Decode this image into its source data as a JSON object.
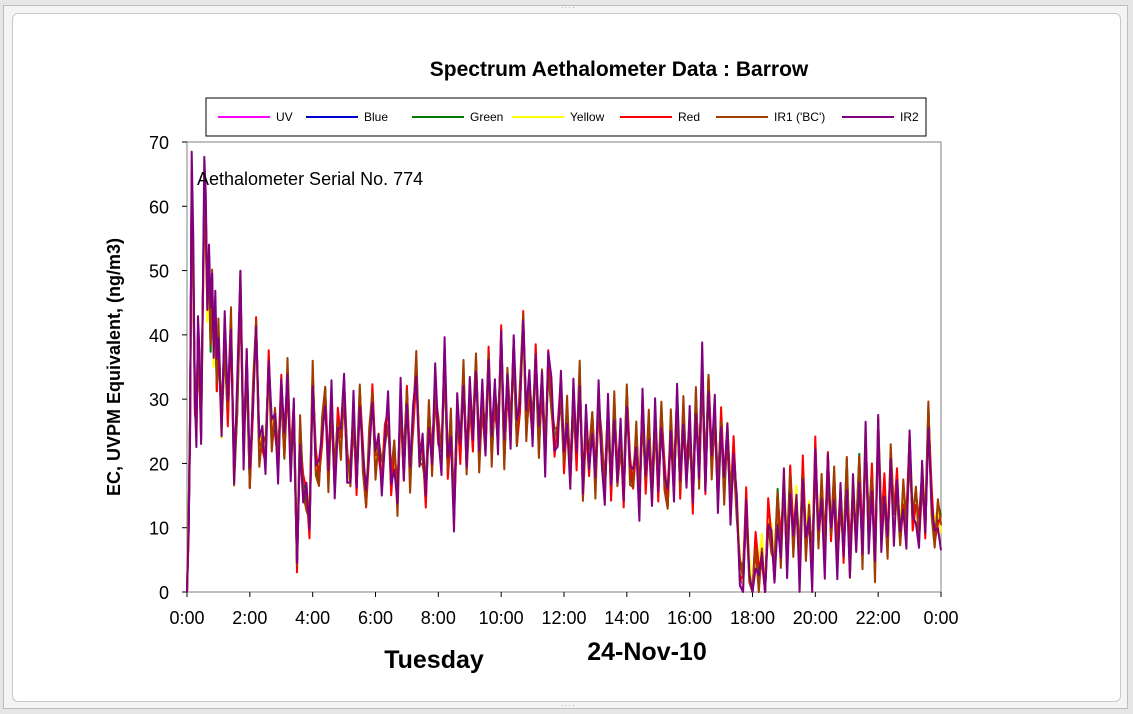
{
  "chart_data": {
    "type": "line",
    "title": "Spectrum Aethalometer Data  :  Barrow",
    "ylabel": "EC, UVPM Equivalent, (ng/m3)",
    "xlabel": "",
    "ylim": [
      0,
      70
    ],
    "yticks": [
      0,
      10,
      20,
      30,
      40,
      50,
      60,
      70
    ],
    "xticks": [
      "0:00",
      "2:00",
      "4:00",
      "6:00",
      "8:00",
      "10:00",
      "12:00",
      "14:00",
      "16:00",
      "18:00",
      "20:00",
      "22:00",
      "0:00"
    ],
    "xlim_hours": [
      0,
      24
    ],
    "annotation": "Aethalometer  Serial No. 774",
    "day_label": "Tuesday",
    "date_label": "24-Nov-10",
    "grid": false,
    "legend_position": "top",
    "series": [
      {
        "name": "UV",
        "color": "#ff00ff"
      },
      {
        "name": "Blue",
        "color": "#0000cc"
      },
      {
        "name": "Green",
        "color": "#007a00"
      },
      {
        "name": "Yellow",
        "color": "#ffff00"
      },
      {
        "name": "Red",
        "color": "#ff0000"
      },
      {
        "name": "IR1 ('BC')",
        "color": "#a03c00"
      },
      {
        "name": "IR2",
        "color": "#800080"
      }
    ],
    "base_values": [
      [
        0.0,
        0
      ],
      [
        0.05,
        10
      ],
      [
        0.1,
        27
      ],
      [
        0.15,
        65
      ],
      [
        0.2,
        50
      ],
      [
        0.25,
        30
      ],
      [
        0.3,
        25
      ],
      [
        0.35,
        40
      ],
      [
        0.4,
        34
      ],
      [
        0.45,
        25
      ],
      [
        0.5,
        44
      ],
      [
        0.55,
        62
      ],
      [
        0.6,
        58
      ],
      [
        0.65,
        45
      ],
      [
        0.7,
        52
      ],
      [
        0.75,
        40
      ],
      [
        0.8,
        48
      ],
      [
        0.85,
        38
      ],
      [
        0.9,
        44
      ],
      [
        0.95,
        33
      ],
      [
        1.0,
        40
      ],
      [
        1.1,
        26
      ],
      [
        1.2,
        40
      ],
      [
        1.3,
        28
      ],
      [
        1.4,
        42
      ],
      [
        1.5,
        18
      ],
      [
        1.6,
        30
      ],
      [
        1.7,
        48
      ],
      [
        1.8,
        22
      ],
      [
        1.9,
        36
      ],
      [
        2.0,
        17
      ],
      [
        2.1,
        30
      ],
      [
        2.2,
        42
      ],
      [
        2.3,
        22
      ],
      [
        2.4,
        24
      ],
      [
        2.5,
        21
      ],
      [
        2.6,
        36
      ],
      [
        2.7,
        24
      ],
      [
        2.8,
        27
      ],
      [
        2.9,
        20
      ],
      [
        3.0,
        32
      ],
      [
        3.1,
        22
      ],
      [
        3.2,
        34
      ],
      [
        3.3,
        20
      ],
      [
        3.4,
        28
      ],
      [
        3.5,
        4
      ],
      [
        3.6,
        25
      ],
      [
        3.7,
        16
      ],
      [
        3.8,
        15
      ],
      [
        3.9,
        10
      ],
      [
        4.0,
        34
      ],
      [
        4.1,
        20
      ],
      [
        4.2,
        18
      ],
      [
        4.3,
        25
      ],
      [
        4.4,
        31
      ],
      [
        4.5,
        18
      ],
      [
        4.6,
        30
      ],
      [
        4.7,
        17
      ],
      [
        4.8,
        27
      ],
      [
        4.9,
        23
      ],
      [
        5.0,
        32
      ],
      [
        5.1,
        20
      ],
      [
        5.2,
        18
      ],
      [
        5.3,
        28
      ],
      [
        5.4,
        17
      ],
      [
        5.5,
        31
      ],
      [
        5.6,
        21
      ],
      [
        5.7,
        14
      ],
      [
        5.8,
        23
      ],
      [
        5.9,
        31
      ],
      [
        6.0,
        20
      ],
      [
        6.1,
        23
      ],
      [
        6.2,
        18
      ],
      [
        6.3,
        24
      ],
      [
        6.4,
        28
      ],
      [
        6.5,
        17
      ],
      [
        6.6,
        22
      ],
      [
        6.7,
        14
      ],
      [
        6.8,
        30
      ],
      [
        6.9,
        19
      ],
      [
        7.0,
        31
      ],
      [
        7.1,
        18
      ],
      [
        7.2,
        27
      ],
      [
        7.3,
        35
      ],
      [
        7.4,
        21
      ],
      [
        7.5,
        22
      ],
      [
        7.6,
        15
      ],
      [
        7.7,
        28
      ],
      [
        7.8,
        20
      ],
      [
        7.9,
        32
      ],
      [
        8.0,
        25
      ],
      [
        8.1,
        21
      ],
      [
        8.2,
        37
      ],
      [
        8.3,
        19
      ],
      [
        8.4,
        26
      ],
      [
        8.5,
        12
      ],
      [
        8.6,
        28
      ],
      [
        8.7,
        22
      ],
      [
        8.8,
        34
      ],
      [
        8.9,
        20
      ],
      [
        9.0,
        30
      ],
      [
        9.1,
        24
      ],
      [
        9.2,
        36
      ],
      [
        9.3,
        21
      ],
      [
        9.4,
        30
      ],
      [
        9.5,
        23
      ],
      [
        9.6,
        37
      ],
      [
        9.7,
        22
      ],
      [
        9.8,
        31
      ],
      [
        9.9,
        24
      ],
      [
        10.0,
        40
      ],
      [
        10.1,
        21
      ],
      [
        10.2,
        33
      ],
      [
        10.3,
        25
      ],
      [
        10.4,
        38
      ],
      [
        10.5,
        24
      ],
      [
        10.6,
        30
      ],
      [
        10.7,
        43
      ],
      [
        10.8,
        26
      ],
      [
        10.9,
        32
      ],
      [
        11.0,
        25
      ],
      [
        11.1,
        37
      ],
      [
        11.2,
        23
      ],
      [
        11.3,
        33
      ],
      [
        11.4,
        21
      ],
      [
        11.5,
        36
      ],
      [
        11.6,
        30
      ],
      [
        11.7,
        23
      ],
      [
        11.8,
        25
      ],
      [
        11.9,
        32
      ],
      [
        12.0,
        20
      ],
      [
        12.1,
        28
      ],
      [
        12.2,
        18
      ],
      [
        12.3,
        30
      ],
      [
        12.4,
        21
      ],
      [
        12.5,
        34
      ],
      [
        12.6,
        16
      ],
      [
        12.7,
        26
      ],
      [
        12.8,
        20
      ],
      [
        12.9,
        27
      ],
      [
        13.0,
        17
      ],
      [
        13.1,
        30
      ],
      [
        13.2,
        22
      ],
      [
        13.3,
        16
      ],
      [
        13.4,
        28
      ],
      [
        13.5,
        16
      ],
      [
        13.6,
        29
      ],
      [
        13.7,
        18
      ],
      [
        13.8,
        24
      ],
      [
        13.9,
        15
      ],
      [
        14.0,
        31
      ],
      [
        14.1,
        19
      ],
      [
        14.2,
        17
      ],
      [
        14.3,
        24
      ],
      [
        14.4,
        14
      ],
      [
        14.5,
        29
      ],
      [
        14.6,
        17
      ],
      [
        14.7,
        26
      ],
      [
        14.8,
        15
      ],
      [
        14.9,
        27
      ],
      [
        15.0,
        16
      ],
      [
        15.1,
        28
      ],
      [
        15.2,
        18
      ],
      [
        15.3,
        14
      ],
      [
        15.4,
        26
      ],
      [
        15.5,
        17
      ],
      [
        15.6,
        30
      ],
      [
        15.7,
        16
      ],
      [
        15.8,
        28
      ],
      [
        15.9,
        18
      ],
      [
        16.0,
        26
      ],
      [
        16.1,
        14
      ],
      [
        16.2,
        30
      ],
      [
        16.3,
        18
      ],
      [
        16.4,
        35
      ],
      [
        16.5,
        17
      ],
      [
        16.6,
        33
      ],
      [
        16.7,
        20
      ],
      [
        16.8,
        28
      ],
      [
        16.9,
        15
      ],
      [
        17.0,
        27
      ],
      [
        17.1,
        16
      ],
      [
        17.2,
        25
      ],
      [
        17.3,
        14
      ],
      [
        17.4,
        22
      ],
      [
        17.5,
        13
      ],
      [
        17.6,
        3
      ],
      [
        17.7,
        1
      ],
      [
        17.8,
        14
      ],
      [
        17.9,
        2
      ],
      [
        18.0,
        0
      ],
      [
        18.1,
        7
      ],
      [
        18.2,
        2
      ],
      [
        18.3,
        6
      ],
      [
        18.4,
        0
      ],
      [
        18.5,
        12
      ],
      [
        18.6,
        8
      ],
      [
        18.7,
        3
      ],
      [
        18.8,
        14
      ],
      [
        18.9,
        6
      ],
      [
        19.0,
        17
      ],
      [
        19.1,
        5
      ],
      [
        19.2,
        18
      ],
      [
        19.3,
        8
      ],
      [
        19.4,
        14
      ],
      [
        19.5,
        4
      ],
      [
        19.6,
        19
      ],
      [
        19.7,
        7
      ],
      [
        19.8,
        12
      ],
      [
        19.9,
        3
      ],
      [
        20.0,
        22
      ],
      [
        20.1,
        8
      ],
      [
        20.2,
        16
      ],
      [
        20.3,
        6
      ],
      [
        20.4,
        20
      ],
      [
        20.5,
        9
      ],
      [
        20.6,
        17
      ],
      [
        20.7,
        5
      ],
      [
        20.8,
        15
      ],
      [
        20.9,
        6
      ],
      [
        21.0,
        19
      ],
      [
        21.1,
        4
      ],
      [
        21.2,
        16
      ],
      [
        21.3,
        8
      ],
      [
        21.4,
        20
      ],
      [
        21.5,
        6
      ],
      [
        21.6,
        24
      ],
      [
        21.7,
        9
      ],
      [
        21.8,
        18
      ],
      [
        21.9,
        4
      ],
      [
        22.0,
        26
      ],
      [
        22.1,
        10
      ],
      [
        22.2,
        16
      ],
      [
        22.3,
        7
      ],
      [
        22.4,
        21
      ],
      [
        22.5,
        11
      ],
      [
        22.6,
        17
      ],
      [
        22.7,
        8
      ],
      [
        22.8,
        15
      ],
      [
        22.9,
        10
      ],
      [
        23.0,
        23
      ],
      [
        23.1,
        11
      ],
      [
        23.2,
        14
      ],
      [
        23.3,
        9
      ],
      [
        23.4,
        18
      ],
      [
        23.5,
        10
      ],
      [
        23.6,
        28
      ],
      [
        23.7,
        14
      ],
      [
        23.8,
        8
      ],
      [
        23.9,
        12
      ],
      [
        24.0,
        10
      ]
    ]
  }
}
